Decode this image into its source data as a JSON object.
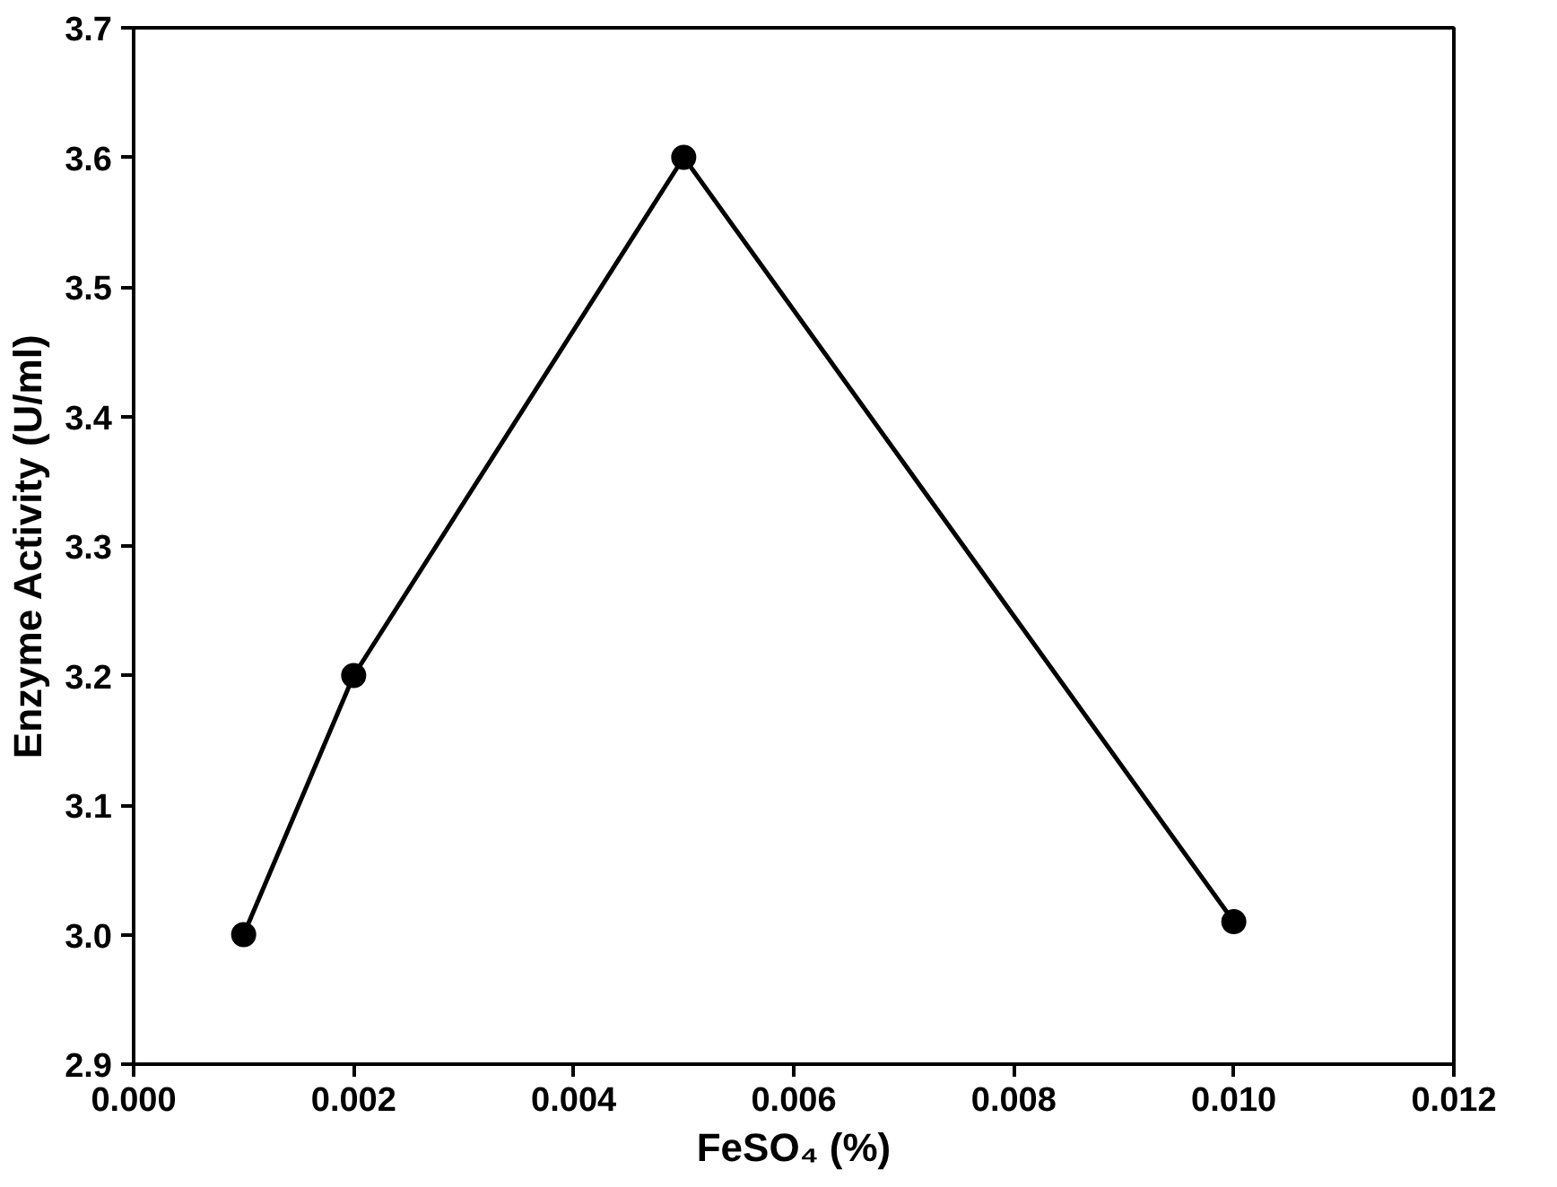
{
  "chart_data": {
    "type": "line",
    "xlabel": "FeSO₄ (%)",
    "ylabel": "Enzyme Activity (U/ml)",
    "x": [
      0.001,
      0.002,
      0.005,
      0.01
    ],
    "series": [
      {
        "color": "#000000",
        "values": [
          3.0,
          3.2,
          3.6,
          3.01
        ]
      }
    ],
    "xlim": [
      0,
      0.012
    ],
    "xticks": [
      {
        "value": 0,
        "label": "0.000"
      },
      0.002,
      0.004,
      0.006,
      0.008,
      {
        "value": 0.01,
        "label": "0.010"
      },
      0.012
    ],
    "ylim": [
      2.9,
      3.7
    ],
    "yticks": [
      2.9,
      {
        "value": 3.0,
        "label": "3.0"
      },
      3.1,
      3.2,
      3.3,
      3.4,
      3.5,
      3.6,
      3.7
    ],
    "grid": false,
    "marker": "circle",
    "line_style": "solid"
  }
}
